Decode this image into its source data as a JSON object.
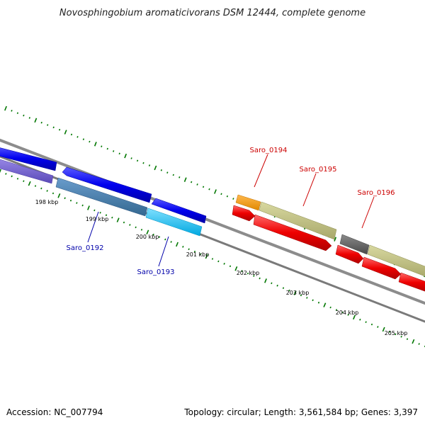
{
  "title": "Novosphingobium aromaticivorans DSM 12444, complete genome",
  "footer": {
    "accession": "Accession: NC_007794",
    "summary": "Topology: circular; Length: 3,561,584 bp; Genes: 3,397"
  },
  "ruler": {
    "tick_labels": [
      "198 kbp",
      "199 kbp",
      "200 kbp",
      "201 kbp",
      "202 kbp",
      "203 kbp",
      "204 kbp",
      "205 kbp"
    ]
  },
  "genes": {
    "plus_strand": [
      {
        "name": "Saro_0194",
        "color": "#ff9900"
      },
      {
        "name": "Saro_0195",
        "color": "#bdbd7d"
      },
      {
        "name": "Saro_0196",
        "color": "#bdbd7d"
      }
    ],
    "minus_strand": [
      {
        "name": "Saro_0192",
        "color": "#4682b4"
      },
      {
        "name": "Saro_0193",
        "color": "#00bfff"
      }
    ]
  },
  "colors": {
    "label_plus": "#cc0000",
    "label_minus": "#0000aa",
    "cds_forward": "#ff0000",
    "cds_reverse": "#0000ff",
    "backbone": "#808080",
    "ticks": "#007700"
  }
}
